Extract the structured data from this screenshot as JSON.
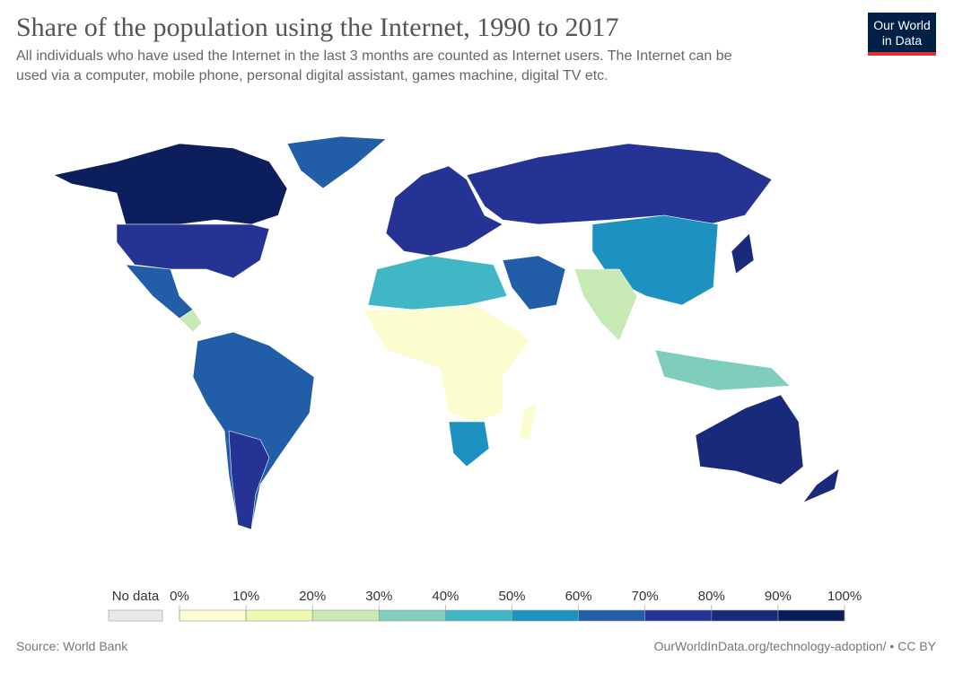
{
  "header": {
    "title": "Share of the population using the Internet, 1990 to 2017",
    "subtitle_lines": [
      "All individuals who have used the Internet in the last 3 months are counted as Internet users. The Internet can be",
      "used via a computer, mobile phone, personal digital assistant, games machine, digital TV etc."
    ],
    "logo_lines": [
      "Our World",
      "in Data"
    ]
  },
  "legend": {
    "no_data": "No data",
    "no_data_color": "#e9e9e9",
    "ticks": [
      "0%",
      "10%",
      "20%",
      "30%",
      "40%",
      "50%",
      "60%",
      "70%",
      "80%",
      "90%",
      "100%"
    ],
    "colors": [
      "#fbfdd0",
      "#edf8b1",
      "#c7e9b4",
      "#7fcdbb",
      "#41b6c4",
      "#1d91c0",
      "#225ea8",
      "#253494",
      "#1a2a7a",
      "#081d58"
    ]
  },
  "footer": {
    "source": "Source: World Bank",
    "url": "OurWorldInData.org/technology-adoption/ • CC BY"
  }
}
